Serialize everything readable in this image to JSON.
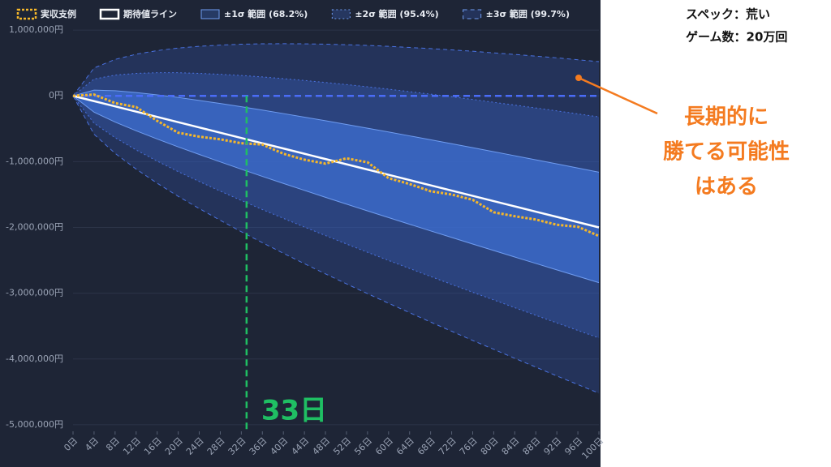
{
  "chart_data": {
    "type": "band-line",
    "x": [
      0,
      4,
      8,
      12,
      16,
      20,
      24,
      28,
      32,
      36,
      40,
      44,
      48,
      52,
      56,
      60,
      64,
      68,
      72,
      76,
      80,
      84,
      88,
      92,
      96,
      100
    ],
    "xlim": [
      0,
      100
    ],
    "xticks": [
      {
        "value": 0,
        "label": "0日"
      },
      {
        "value": 4,
        "label": "4日"
      },
      {
        "value": 8,
        "label": "8日"
      },
      {
        "value": 12,
        "label": "12日"
      },
      {
        "value": 16,
        "label": "16日"
      },
      {
        "value": 20,
        "label": "20日"
      },
      {
        "value": 24,
        "label": "24日"
      },
      {
        "value": 28,
        "label": "28日"
      },
      {
        "value": 32,
        "label": "32日"
      },
      {
        "value": 36,
        "label": "36日"
      },
      {
        "value": 40,
        "label": "40日"
      },
      {
        "value": 44,
        "label": "44日"
      },
      {
        "value": 48,
        "label": "48日"
      },
      {
        "value": 52,
        "label": "52日"
      },
      {
        "value": 56,
        "label": "56日"
      },
      {
        "value": 60,
        "label": "60日"
      },
      {
        "value": 64,
        "label": "64日"
      },
      {
        "value": 68,
        "label": "68日"
      },
      {
        "value": 72,
        "label": "72日"
      },
      {
        "value": 76,
        "label": "76日"
      },
      {
        "value": 80,
        "label": "80日"
      },
      {
        "value": 84,
        "label": "84日"
      },
      {
        "value": 88,
        "label": "88日"
      },
      {
        "value": 92,
        "label": "92日"
      },
      {
        "value": 96,
        "label": "96日"
      },
      {
        "value": 100,
        "label": "100日"
      }
    ],
    "ylim": [
      -5100000,
      1100000
    ],
    "yticks": [
      {
        "value": 1000000,
        "label": "1,000,000円"
      },
      {
        "value": 0,
        "label": "0円"
      },
      {
        "value": -1000000,
        "label": "-1,000,000円"
      },
      {
        "value": -2000000,
        "label": "-2,000,000円"
      },
      {
        "value": -3000000,
        "label": "-3,000,000円"
      },
      {
        "value": -4000000,
        "label": "-4,000,000円"
      },
      {
        "value": -5000000,
        "label": "-5,000,000円"
      }
    ],
    "grid": true,
    "series": [
      {
        "name": "実収支例",
        "color": "#f5b72a",
        "style": "dotted",
        "values": [
          0,
          20000,
          -110000,
          -170000,
          -380000,
          -560000,
          -620000,
          -660000,
          -720000,
          -740000,
          -880000,
          -970000,
          -1030000,
          -950000,
          -1010000,
          -1250000,
          -1340000,
          -1450000,
          -1500000,
          -1580000,
          -1770000,
          -1830000,
          -1880000,
          -1960000,
          -1990000,
          -2130000
        ]
      },
      {
        "name": "期待値ライン",
        "color": "#ffffff",
        "style": "solid",
        "values": [
          0,
          -80000,
          -160000,
          -240000,
          -320000,
          -400000,
          -480000,
          -560000,
          -640000,
          -720000,
          -800000,
          -880000,
          -960000,
          -1040000,
          -1120000,
          -1200000,
          -1280000,
          -1360000,
          -1440000,
          -1520000,
          -1600000,
          -1680000,
          -1760000,
          -1840000,
          -1920000,
          -2000000
        ]
      }
    ],
    "bands": [
      {
        "name": "±1σ 範囲 (68.2%)",
        "color": "#3d6ed1",
        "style": "solid",
        "upper": [
          0,
          88000,
          78000,
          51000,
          16000,
          -24000,
          -69000,
          -116000,
          -165000,
          -216000,
          -269000,
          -323000,
          -378000,
          -434000,
          -491000,
          -549000,
          -608000,
          -667000,
          -727000,
          -787000,
          -849000,
          -910000,
          -972000,
          -1034000,
          -1097000,
          -1160000
        ],
        "lower": [
          0,
          -248000,
          -398000,
          -531000,
          -656000,
          -776000,
          -891000,
          -1004000,
          -1115000,
          -1224000,
          -1331000,
          -1437000,
          -1542000,
          -1646000,
          -1749000,
          -1851000,
          -1952000,
          -2053000,
          -2153000,
          -2253000,
          -2351000,
          -2450000,
          -2548000,
          -2646000,
          -2743000,
          -2840000
        ]
      },
      {
        "name": "±2σ 範囲 (95.4%)",
        "color": "#3a62c4",
        "style": "dotted",
        "upper": [
          0,
          256000,
          316000,
          342000,
          352000,
          352000,
          342000,
          328000,
          310000,
          288000,
          262000,
          234000,
          204000,
          172000,
          138000,
          102000,
          64000,
          26000,
          -14000,
          -54000,
          -98000,
          -140000,
          -184000,
          -228000,
          -274000,
          -320000
        ],
        "lower": [
          0,
          -416000,
          -636000,
          -822000,
          -992000,
          -1152000,
          -1302000,
          -1448000,
          -1590000,
          -1728000,
          -1862000,
          -1994000,
          -2124000,
          -2252000,
          -2378000,
          -2502000,
          -2624000,
          -2746000,
          -2866000,
          -2986000,
          -3102000,
          -3220000,
          -3336000,
          -3452000,
          -3566000,
          -3680000
        ]
      },
      {
        "name": "±3σ 範囲 (99.7%)",
        "color": "#3556b0",
        "style": "dashed",
        "upper": [
          0,
          424000,
          554000,
          633000,
          688000,
          728000,
          753000,
          772000,
          785000,
          792000,
          793000,
          791000,
          786000,
          778000,
          767000,
          753000,
          736000,
          719000,
          699000,
          679000,
          653000,
          630000,
          604000,
          578000,
          549000,
          520000
        ],
        "lower": [
          0,
          -584000,
          -874000,
          -1113000,
          -1328000,
          -1528000,
          -1713000,
          -1892000,
          -2065000,
          -2232000,
          -2393000,
          -2551000,
          -2706000,
          -2858000,
          -3007000,
          -3153000,
          -3296000,
          -3439000,
          -3579000,
          -3719000,
          -3853000,
          -3990000,
          -4124000,
          -4258000,
          -4389000,
          -4520000
        ]
      }
    ],
    "zero_line": {
      "value": 0,
      "color": "#4a6cf7"
    },
    "marker": {
      "x": 33,
      "label": "33日",
      "color": "#1fbf63"
    }
  },
  "side_panel": {
    "spec": "スペック：荒い",
    "games": "ゲーム数：20万回",
    "callout": [
      "長期的に",
      "勝てる可能性",
      "はある"
    ]
  }
}
